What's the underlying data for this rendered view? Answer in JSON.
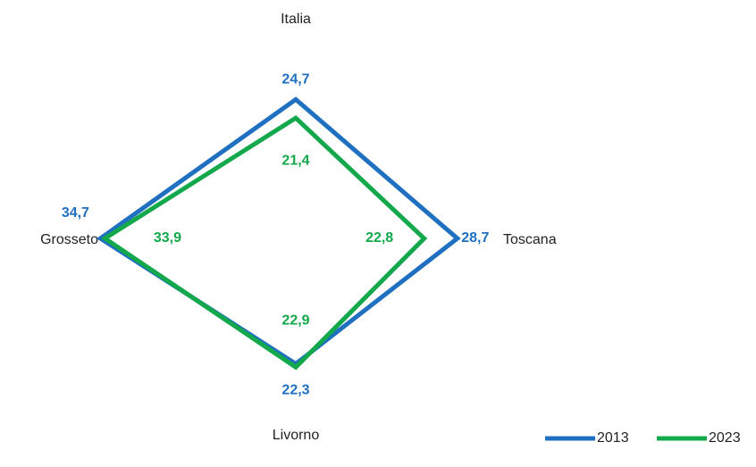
{
  "chart_data": {
    "type": "radar",
    "categories": [
      "Italia",
      "Toscana",
      "Livorno",
      "Grosseto"
    ],
    "rlim": [
      0,
      40
    ],
    "series": [
      {
        "name": "2013",
        "color": "#1f70c1",
        "values": [
          24.7,
          28.7,
          22.3,
          34.7
        ],
        "value_labels": [
          "24,7",
          "28,7",
          "22,3",
          "34,7"
        ]
      },
      {
        "name": "2023",
        "color": "#13a84b",
        "values": [
          21.4,
          22.8,
          22.9,
          33.9
        ],
        "value_labels": [
          "21,4",
          "22,8",
          "22,9",
          "33,9"
        ]
      }
    ],
    "legend": "bottom-right"
  }
}
